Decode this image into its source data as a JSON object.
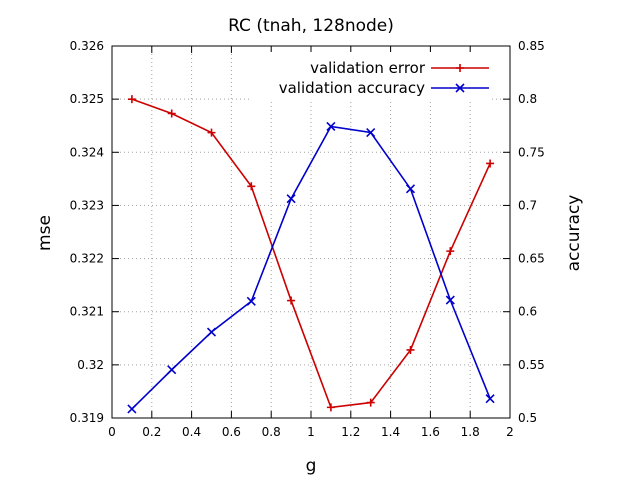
{
  "chart_data": {
    "type": "line",
    "title": "RC (tnah, 128node)",
    "xlabel": "g",
    "ylabel": "mse",
    "y2label": "accuracy",
    "xlim": [
      0,
      2
    ],
    "ylim": [
      0.319,
      0.326
    ],
    "y2lim": [
      0.5,
      0.85
    ],
    "x_ticks": [
      "0",
      "0.2",
      "0.4",
      "0.6",
      "0.8",
      "1",
      "1.2",
      "1.4",
      "1.6",
      "1.8",
      "2"
    ],
    "y_ticks": [
      "0.319",
      "0.32",
      "0.321",
      "0.322",
      "0.323",
      "0.324",
      "0.325",
      "0.326"
    ],
    "y2_ticks": [
      "0.5",
      "0.55",
      "0.6",
      "0.65",
      "0.7",
      "0.75",
      "0.8",
      "0.85"
    ],
    "grid": true,
    "legend_position": "top-right",
    "x": [
      0.1,
      0.3,
      0.5,
      0.7,
      0.9,
      1.1,
      1.3,
      1.5,
      1.7,
      1.9
    ],
    "series": [
      {
        "name": "validation error",
        "axis": "left",
        "color": "#cc0000",
        "marker": "plus",
        "values": [
          0.325,
          0.32473,
          0.32437,
          0.32336,
          0.32121,
          0.3192,
          0.31929,
          0.32028,
          0.32214,
          0.32379
        ]
      },
      {
        "name": "validation accuracy",
        "axis": "right",
        "color": "#0000cc",
        "marker": "cross",
        "values": [
          0.5085,
          0.5454,
          0.5809,
          0.6098,
          0.7063,
          0.7743,
          0.7686,
          0.7156,
          0.611,
          0.5182
        ]
      }
    ]
  }
}
